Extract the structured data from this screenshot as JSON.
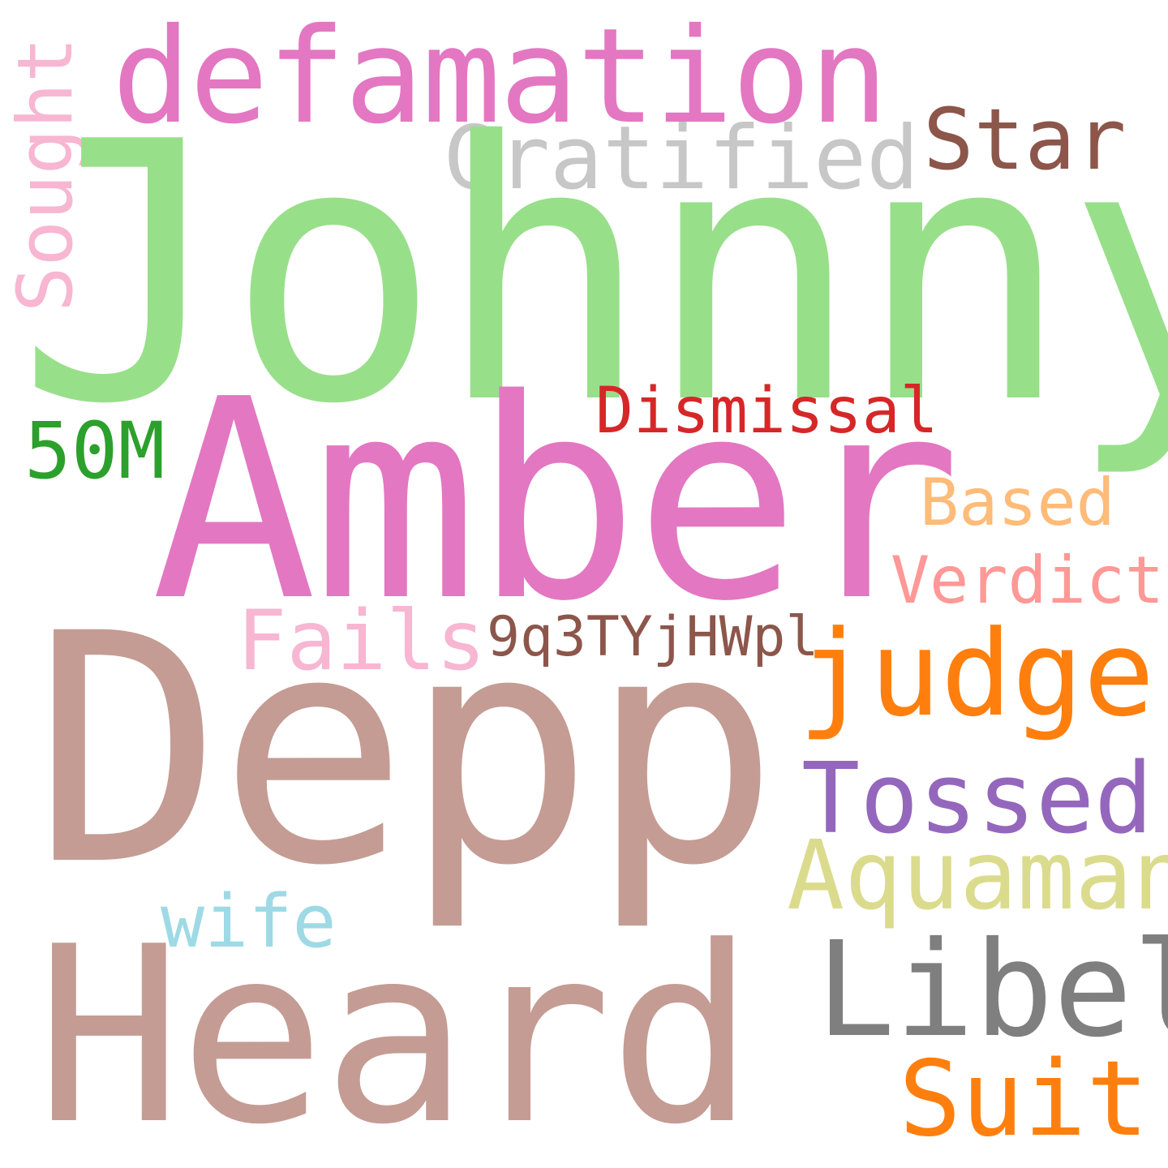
{
  "word_cloud": {
    "words": {
      "johnny": "Johnny",
      "amber": "Amber",
      "defamation": "defamation",
      "depp": "Depp",
      "heard": "Heard",
      "gratified": "Gratified",
      "star": "Star",
      "sought": "Sought",
      "dismissal": "Dismissal",
      "fifty_m": "50M",
      "based": "Based",
      "verdict": "Verdict",
      "fails": "Fails",
      "code": "9q3TYjHWpl",
      "judge": "judge",
      "tossed": "Tossed",
      "aquaman": "Aquaman",
      "wife": "wife",
      "libel": "Libel",
      "suit": "Suit"
    },
    "colors": {
      "johnny": "#98df8a",
      "amber": "#e377c2",
      "defamation": "#e377c2",
      "depp": "#c49c94",
      "heard": "#c49c94",
      "gratified": "#c7c7c7",
      "star": "#8c564b",
      "sought": "#f7b6d2",
      "dismissal": "#d62728",
      "fifty_m": "#2ca02c",
      "based": "#ffbb78",
      "verdict": "#ff9896",
      "fails": "#f7b6d2",
      "code": "#8c564b",
      "judge": "#ff7f0e",
      "tossed": "#9467bd",
      "aquaman": "#dbdb8d",
      "wife": "#9edae5",
      "libel": "#7f7f7f",
      "suit": "#ff7f0e"
    }
  }
}
